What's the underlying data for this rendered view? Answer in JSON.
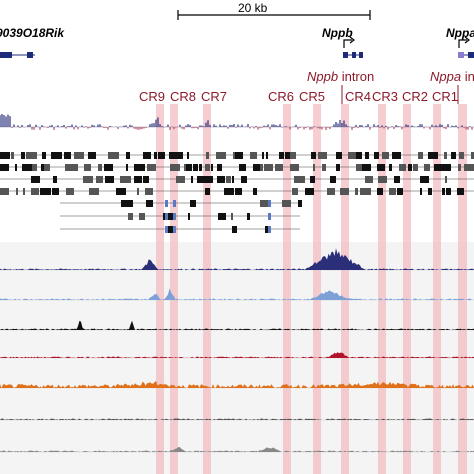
{
  "browser": {
    "scale_label": "20 kb",
    "genes": [
      {
        "name": "9039O18Rik"
      },
      {
        "name": "Nppb"
      },
      {
        "name": "Nppa"
      }
    ],
    "highlight_color": "#f2b8bd",
    "label_color": "#8b1a2a",
    "regions": [
      {
        "label": "CR9"
      },
      {
        "label": "CR8"
      },
      {
        "label": "CR7"
      },
      {
        "label": "CR6"
      },
      {
        "label": "CR5"
      },
      {
        "label": "CR4"
      },
      {
        "label": "CR3"
      },
      {
        "label": "CR2"
      },
      {
        "label": "CR1"
      }
    ],
    "intron_labels": [
      {
        "gene": "Nppb",
        "suffix": "intron"
      },
      {
        "gene": "Nppa",
        "suffix": "in"
      }
    ],
    "signal_tracks": [
      {
        "color": "#2b2f7a"
      },
      {
        "color": "#7da0d6"
      },
      {
        "color": "#111111"
      },
      {
        "color": "#b0132a"
      },
      {
        "color": "#e0701a"
      },
      {
        "color": "#555555"
      },
      {
        "color": "#888888"
      }
    ]
  }
}
